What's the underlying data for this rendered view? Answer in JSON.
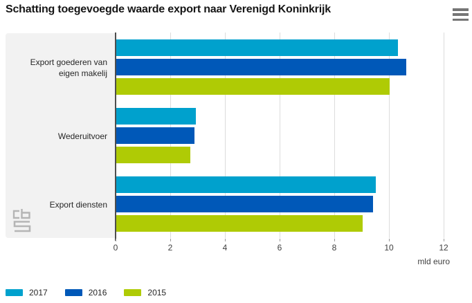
{
  "title": "Schatting toegevoegde waarde export naar Verenigd Koninkrijk",
  "menu": {
    "icon": "hamburger-menu-icon"
  },
  "chart_data": {
    "type": "bar",
    "orientation": "horizontal",
    "title": "Schatting toegevoegde waarde export naar Verenigd Koninkrijk",
    "categories": [
      "Export goederen van eigen makelij",
      "Wederuitvoer",
      "Export diensten"
    ],
    "series": [
      {
        "name": "2017",
        "color": "#00a1cd",
        "values": [
          10.3,
          2.9,
          9.5
        ]
      },
      {
        "name": "2016",
        "color": "#0058b8",
        "values": [
          10.6,
          2.85,
          9.4
        ]
      },
      {
        "name": "2015",
        "color": "#afcb05",
        "values": [
          10.0,
          2.7,
          9.0
        ]
      }
    ],
    "xlabel": "mld euro",
    "xlim": [
      0,
      12
    ],
    "xticks": [
      0,
      2,
      4,
      6,
      8,
      10,
      12
    ],
    "grid": true,
    "legend_position": "bottom"
  },
  "branding": {
    "logo": "cbs-logo"
  },
  "colors": {
    "axis": "#4d4d4d",
    "gridline": "#dcdcdc",
    "label_panel": "#f2f2f2",
    "text": "#262626",
    "axis_text": "#404040"
  }
}
